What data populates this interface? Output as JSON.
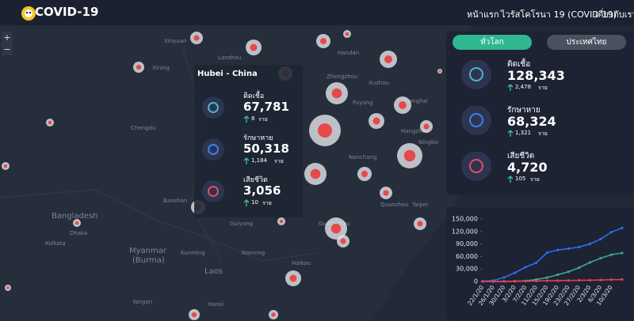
{
  "header": {
    "logo": "COVID-19",
    "nav": [
      "หน้าแรก",
      "ไวรัสโคโรนา 19 (COVID-19)",
      "เกี่ยวกับเรา"
    ]
  },
  "map": {
    "zoom": [
      "+",
      "−"
    ],
    "places": [
      "Xinyuan",
      "Lanzhou",
      "Xining",
      "Chengdu",
      "Kunming",
      "Guiyang",
      "Nanning",
      "Hanoi",
      "Laos",
      "Bangladesh",
      "Dhaka",
      "Kolkata",
      "Myanmar",
      "(Burma)",
      "Haikou",
      "Yangon",
      "Zhengzhou",
      "Xuzhou",
      "Fuyang",
      "Hangzhou",
      "Ningbo",
      "Nanchang",
      "Quanzhou",
      "Taipei",
      "Handan",
      "Baoshan",
      "Shanghai",
      "Guangzhou"
    ]
  },
  "popup": {
    "title": "Hubei - China",
    "stats": [
      {
        "label": "ติดเชื้อ",
        "value": "67,781",
        "change": "8",
        "unit": "ราย"
      },
      {
        "label": "รักษาหาย",
        "value": "50,318",
        "change": "1,184",
        "unit": "ราย"
      },
      {
        "label": "เสียชีวิต",
        "value": "3,056",
        "change": "10",
        "unit": "ราย"
      }
    ]
  },
  "panel": {
    "tabs": [
      "ทั่วโลก",
      "ประเทศไทย"
    ],
    "stats": [
      {
        "label": "ติดเชื้อ",
        "value": "128,343",
        "change": "2,478",
        "unit": "ราย"
      },
      {
        "label": "รักษาหาย",
        "value": "68,324",
        "change": "1,321",
        "unit": "ราย"
      },
      {
        "label": "เสียชีวิต",
        "value": "4,720",
        "change": "105",
        "unit": "ราย"
      }
    ]
  },
  "chart_data": {
    "type": "line",
    "categories": [
      "22/1/20",
      "26/1/20",
      "30/1/20",
      "3/2/20",
      "7/2/20",
      "11/2/20",
      "15/2/20",
      "19/2/20",
      "23/2/20",
      "27/2/20",
      "2/3/20",
      "6/3/20",
      "10/3/20",
      null
    ],
    "series": [
      {
        "color": "#2f6bf0",
        "values": [
          555,
          2118,
          9802,
          20630,
          34391,
          44802,
          69032,
          75641,
          78985,
          82756,
          90306,
          101784,
          118582,
          128343
        ]
      },
      {
        "color": "#3aa88c",
        "values": [
          28,
          52,
          171,
          623,
          1540,
          4683,
          9419,
          16121,
          23394,
          33277,
          45602,
          55866,
          64404,
          68324
        ]
      },
      {
        "color": "#e5414f",
        "values": [
          17,
          56,
          213,
          427,
          719,
          1118,
          1666,
          2009,
          2469,
          2814,
          3085,
          3460,
          4262,
          4720
        ]
      }
    ],
    "ylim": [
      0,
      150000
    ],
    "yticks": [
      0,
      {
        "value": 30000,
        "label": "30,000"
      },
      {
        "value": 60000,
        "label": "60,000"
      },
      {
        "value": 90000,
        "label": "90,000"
      },
      {
        "value": 120000,
        "label": "120,000"
      },
      {
        "value": 150000,
        "label": "150,000"
      }
    ]
  }
}
